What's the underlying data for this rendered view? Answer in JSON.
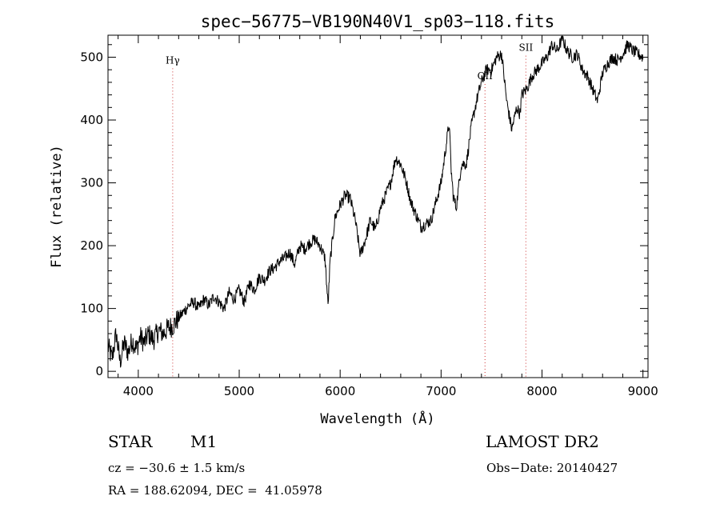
{
  "chart_data": {
    "type": "line",
    "title": "spec−56775−VB190N40V1_sp03−118.fits",
    "xlabel": "Wavelength (Å)",
    "ylabel": "Flux (relative)",
    "xlim": [
      3700,
      9050
    ],
    "ylim": [
      -10,
      535
    ],
    "xticks": [
      4000,
      5000,
      6000,
      7000,
      8000,
      9000
    ],
    "yticks": [
      0,
      100,
      200,
      300,
      400,
      500
    ],
    "grid": false,
    "line_color": "#000000",
    "marker_line_color": "#cc3333",
    "line_markers": [
      {
        "name": "Hγ",
        "x": 4341,
        "label_y": 490
      },
      {
        "name": "OII",
        "x": 7435,
        "label_y": 465
      },
      {
        "name": "SII",
        "x": 7840,
        "label_y": 510
      }
    ],
    "series": [
      {
        "x": [
          3700,
          3740,
          3780,
          3820,
          3860,
          3900,
          3940,
          3980,
          4020,
          4060,
          4100,
          4150,
          4200,
          4250,
          4300,
          4341,
          4400,
          4450,
          4500,
          4550,
          4600,
          4650,
          4700,
          4750,
          4800,
          4850,
          4900,
          4950,
          5000,
          5050,
          5100,
          5150,
          5200,
          5250,
          5300,
          5350,
          5400,
          5450,
          5500,
          5550,
          5600,
          5650,
          5700,
          5750,
          5800,
          5850,
          5880,
          5900,
          5950,
          6000,
          6050,
          6100,
          6150,
          6200,
          6250,
          6300,
          6350,
          6400,
          6450,
          6500,
          6550,
          6600,
          6650,
          6700,
          6750,
          6800,
          6850,
          6900,
          6950,
          7000,
          7050,
          7080,
          7100,
          7120,
          7150,
          7200,
          7250,
          7300,
          7350,
          7400,
          7450,
          7500,
          7550,
          7600,
          7650,
          7700,
          7750,
          7780,
          7800,
          7850,
          7900,
          7950,
          8000,
          8050,
          8100,
          8150,
          8200,
          8250,
          8300,
          8350,
          8400,
          8450,
          8500,
          8550,
          8600,
          8650,
          8700,
          8750,
          8800,
          8850,
          8900,
          8950,
          9000
        ],
        "y": [
          40,
          20,
          60,
          15,
          45,
          30,
          50,
          35,
          55,
          45,
          60,
          50,
          65,
          60,
          70,
          72,
          85,
          95,
          105,
          110,
          100,
          115,
          105,
          120,
          110,
          100,
          125,
          115,
          130,
          110,
          140,
          130,
          150,
          145,
          160,
          165,
          175,
          180,
          190,
          170,
          200,
          195,
          205,
          210,
          200,
          180,
          105,
          175,
          245,
          265,
          280,
          275,
          240,
          185,
          210,
          240,
          225,
          260,
          280,
          300,
          340,
          330,
          305,
          270,
          250,
          230,
          235,
          240,
          270,
          300,
          360,
          395,
          320,
          280,
          260,
          330,
          330,
          390,
          430,
          460,
          480,
          480,
          500,
          505,
          430,
          385,
          420,
          410,
          440,
          450,
          470,
          480,
          490,
          500,
          520,
          510,
          530,
          510,
          500,
          505,
          480,
          470,
          450,
          430,
          475,
          490,
          500,
          495,
          505,
          520,
          510,
          505,
          500
        ]
      }
    ]
  },
  "info": {
    "class_label": "STAR",
    "subclass": "M1",
    "survey": "LAMOST DR2",
    "cz": "cz = −30.6 ± 1.5 km/s",
    "obs_date": "Obs−Date: 20140427",
    "coords": "RA = 188.62094, DEC =  41.05978"
  }
}
